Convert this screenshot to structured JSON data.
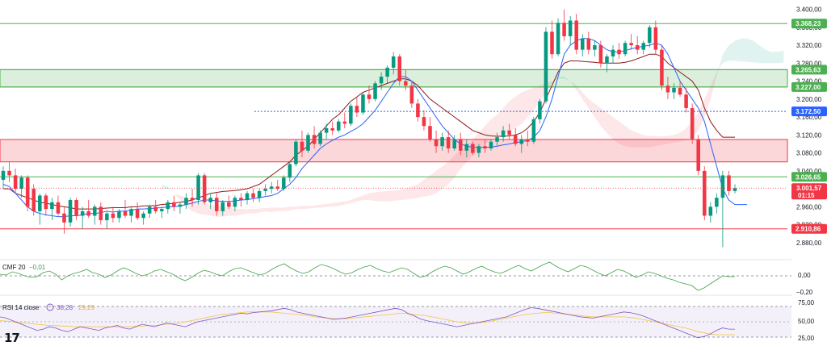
{
  "price_axis_ticks": [
    "3.400,00",
    "3.360,00",
    "3.320,00",
    "3.280,00",
    "3.240,00",
    "3.200,00",
    "3.160,00",
    "3.120,00",
    "3.080,00",
    "3.040,00",
    "2.960,00",
    "2.920,00",
    "2.880,00"
  ],
  "price_axis_tick_values": [
    3400,
    3360,
    3320,
    3280,
    3240,
    3200,
    3160,
    3120,
    3080,
    3040,
    2960,
    2920,
    2880
  ],
  "levels": [
    {
      "label": "3.368,23",
      "value": 3368.23,
      "color": "#4caf50",
      "style": "solid"
    },
    {
      "label": "3.265,63",
      "value": 3265.63,
      "color": "#4caf50",
      "style": "solid"
    },
    {
      "label": "3.227,00",
      "value": 3227.0,
      "color": "#4caf50",
      "style": "solid"
    },
    {
      "label": "3.172,50",
      "value": 3172.5,
      "color": "#2962ff",
      "style": "dotted"
    },
    {
      "label": "3.026,65",
      "value": 3026.65,
      "color": "#4caf50",
      "style": "solid"
    },
    {
      "label": "2.910,86",
      "value": 2910.86,
      "color": "#f23645",
      "style": "solid"
    }
  ],
  "zones": [
    {
      "name": "resistance-zone-green",
      "from": 3227.0,
      "to": 3265.63,
      "color": "#4caf50"
    },
    {
      "name": "support-zone-red",
      "from": 3060,
      "to": 3110,
      "color": "#f23645"
    }
  ],
  "current_price": {
    "label": "3.001,57",
    "countdown": "01:15",
    "value": 3001.57,
    "color": "#f23645"
  },
  "cmf": {
    "label": "CMF 20",
    "value": "−0,01",
    "ticks": [
      "0,00",
      "−0,20"
    ]
  },
  "rsi": {
    "label": "RSI 14 close",
    "value1": "38,28",
    "value2": "29,29",
    "ticks": [
      "75,00",
      "50,00",
      "25,00"
    ]
  },
  "logo_text": "17",
  "colors": {
    "up": "#089981",
    "down": "#f23645",
    "conversion": "#2962ff",
    "base": "#8b1a1a",
    "rsi": "#7e57c2",
    "rsi_ma": "#f6c343",
    "cmf": "#43a047"
  },
  "chart_data": {
    "type": "candlestick",
    "ylim": [
      2860,
      3410
    ],
    "candles": [
      [
        3020,
        3050,
        3000,
        3040
      ],
      [
        3040,
        3060,
        3015,
        3030
      ],
      [
        3030,
        3045,
        2990,
        3000
      ],
      [
        3000,
        3030,
        2980,
        3025
      ],
      [
        3025,
        3030,
        2950,
        2960
      ],
      [
        3000,
        3010,
        2940,
        2950
      ],
      [
        2950,
        2990,
        2920,
        2985
      ],
      [
        2985,
        2990,
        2940,
        2955
      ],
      [
        2955,
        2980,
        2930,
        2970
      ],
      [
        2970,
        2985,
        2940,
        2945
      ],
      [
        2945,
        2960,
        2900,
        2925
      ],
      [
        2925,
        2980,
        2915,
        2975
      ],
      [
        2975,
        2980,
        2930,
        2940
      ],
      [
        2940,
        2960,
        2910,
        2950
      ],
      [
        2950,
        2975,
        2935,
        2940
      ],
      [
        2940,
        2965,
        2920,
        2960
      ],
      [
        2960,
        2970,
        2920,
        2930
      ],
      [
        2930,
        2950,
        2910,
        2945
      ],
      [
        2945,
        2960,
        2925,
        2935
      ],
      [
        2935,
        2955,
        2925,
        2950
      ],
      [
        2950,
        2975,
        2935,
        2940
      ],
      [
        2940,
        2960,
        2925,
        2955
      ],
      [
        2955,
        2970,
        2930,
        2935
      ],
      [
        2935,
        2950,
        2920,
        2945
      ],
      [
        2945,
        2965,
        2935,
        2960
      ],
      [
        2960,
        2975,
        2945,
        2950
      ],
      [
        2950,
        2960,
        2935,
        2955
      ],
      [
        2955,
        2975,
        2945,
        2970
      ],
      [
        2970,
        2985,
        2950,
        2960
      ],
      [
        2960,
        2970,
        2945,
        2965
      ],
      [
        2965,
        2990,
        2955,
        2980
      ],
      [
        2980,
        3000,
        2960,
        2975
      ],
      [
        2975,
        3035,
        2965,
        3030
      ],
      [
        3030,
        3035,
        2965,
        2970
      ],
      [
        2970,
        2990,
        2955,
        2980
      ],
      [
        2980,
        2990,
        2940,
        2950
      ],
      [
        2950,
        2975,
        2940,
        2970
      ],
      [
        2970,
        2985,
        2955,
        2960
      ],
      [
        2960,
        2985,
        2950,
        2980
      ],
      [
        2980,
        2990,
        2960,
        2975
      ],
      [
        2975,
        2995,
        2965,
        2990
      ],
      [
        2990,
        3000,
        2970,
        2980
      ],
      [
        2980,
        3000,
        2970,
        2995
      ],
      [
        2995,
        3010,
        2985,
        3000
      ],
      [
        3000,
        3015,
        2990,
        3005
      ],
      [
        3005,
        3020,
        2995,
        3000
      ],
      [
        3000,
        3030,
        2995,
        3025
      ],
      [
        3025,
        3060,
        3015,
        3055
      ],
      [
        3055,
        3110,
        3050,
        3105
      ],
      [
        3105,
        3130,
        3070,
        3085
      ],
      [
        3085,
        3125,
        3080,
        3120
      ],
      [
        3120,
        3140,
        3090,
        3100
      ],
      [
        3100,
        3130,
        3095,
        3125
      ],
      [
        3125,
        3145,
        3110,
        3135
      ],
      [
        3135,
        3150,
        3120,
        3130
      ],
      [
        3130,
        3155,
        3125,
        3150
      ],
      [
        3150,
        3170,
        3135,
        3145
      ],
      [
        3145,
        3190,
        3140,
        3185
      ],
      [
        3185,
        3205,
        3160,
        3170
      ],
      [
        3170,
        3215,
        3165,
        3210
      ],
      [
        3210,
        3230,
        3190,
        3200
      ],
      [
        3200,
        3240,
        3195,
        3235
      ],
      [
        3235,
        3260,
        3220,
        3250
      ],
      [
        3250,
        3275,
        3235,
        3270
      ],
      [
        3270,
        3305,
        3255,
        3295
      ],
      [
        3295,
        3300,
        3230,
        3240
      ],
      [
        3240,
        3265,
        3220,
        3230
      ],
      [
        3230,
        3240,
        3180,
        3190
      ],
      [
        3190,
        3200,
        3150,
        3160
      ],
      [
        3160,
        3175,
        3130,
        3140
      ],
      [
        3140,
        3160,
        3105,
        3110
      ],
      [
        3110,
        3130,
        3080,
        3095
      ],
      [
        3095,
        3125,
        3085,
        3115
      ],
      [
        3115,
        3130,
        3080,
        3090
      ],
      [
        3090,
        3120,
        3085,
        3110
      ],
      [
        3110,
        3125,
        3075,
        3085
      ],
      [
        3085,
        3110,
        3070,
        3100
      ],
      [
        3100,
        3105,
        3075,
        3080
      ],
      [
        3080,
        3100,
        3070,
        3095
      ],
      [
        3095,
        3110,
        3080,
        3090
      ],
      [
        3090,
        3110,
        3085,
        3105
      ],
      [
        3105,
        3125,
        3095,
        3115
      ],
      [
        3115,
        3140,
        3105,
        3130
      ],
      [
        3130,
        3145,
        3110,
        3120
      ],
      [
        3120,
        3135,
        3095,
        3100
      ],
      [
        3100,
        3120,
        3080,
        3110
      ],
      [
        3110,
        3130,
        3095,
        3105
      ],
      [
        3105,
        3160,
        3100,
        3155
      ],
      [
        3155,
        3200,
        3145,
        3195
      ],
      [
        3195,
        3360,
        3190,
        3350
      ],
      [
        3350,
        3375,
        3290,
        3300
      ],
      [
        3300,
        3380,
        3295,
        3370
      ],
      [
        3370,
        3400,
        3330,
        3340
      ],
      [
        3340,
        3385,
        3320,
        3375
      ],
      [
        3375,
        3390,
        3300,
        3310
      ],
      [
        3310,
        3345,
        3295,
        3335
      ],
      [
        3335,
        3350,
        3300,
        3310
      ],
      [
        3310,
        3330,
        3295,
        3320
      ],
      [
        3320,
        3330,
        3270,
        3280
      ],
      [
        3280,
        3300,
        3260,
        3295
      ],
      [
        3295,
        3320,
        3280,
        3310
      ],
      [
        3310,
        3325,
        3290,
        3300
      ],
      [
        3300,
        3330,
        3295,
        3325
      ],
      [
        3325,
        3345,
        3310,
        3320
      ],
      [
        3320,
        3340,
        3300,
        3310
      ],
      [
        3310,
        3330,
        3300,
        3325
      ],
      [
        3325,
        3365,
        3315,
        3360
      ],
      [
        3360,
        3375,
        3300,
        3310
      ],
      [
        3310,
        3320,
        3220,
        3230
      ],
      [
        3230,
        3250,
        3200,
        3215
      ],
      [
        3215,
        3235,
        3200,
        3225
      ],
      [
        3225,
        3240,
        3205,
        3210
      ],
      [
        3210,
        3225,
        3170,
        3180
      ],
      [
        3180,
        3190,
        3100,
        3110
      ],
      [
        3110,
        3120,
        3030,
        3040
      ],
      [
        3040,
        3050,
        2930,
        2940
      ],
      [
        2940,
        2970,
        2925,
        2960
      ],
      [
        2960,
        2990,
        2945,
        2980
      ],
      [
        2980,
        3040,
        2870,
        3030
      ],
      [
        3030,
        3040,
        2985,
        2995
      ],
      [
        2995,
        3010,
        2990,
        3001.57
      ]
    ],
    "conversion_line": [
      3010,
      3005,
      2990,
      2975,
      2960,
      2950,
      2945,
      2942,
      2940,
      2938,
      2938,
      2940,
      2940,
      2942,
      2945,
      2945,
      2947,
      2950,
      2948,
      2950,
      2950,
      2952,
      2955,
      2955,
      2956,
      2957,
      2958,
      2960,
      2960,
      2962,
      2965,
      2968,
      2972,
      2975,
      2975,
      2973,
      2972,
      2972,
      2973,
      2975,
      2976,
      2978,
      2980,
      2983,
      2985,
      2990,
      3000,
      3010,
      3025,
      3045,
      3060,
      3075,
      3090,
      3100,
      3108,
      3115,
      3120,
      3128,
      3135,
      3145,
      3160,
      3175,
      3195,
      3215,
      3235,
      3250,
      3250,
      3240,
      3220,
      3200,
      3180,
      3160,
      3140,
      3125,
      3110,
      3100,
      3095,
      3093,
      3092,
      3092,
      3093,
      3095,
      3098,
      3100,
      3103,
      3105,
      3108,
      3115,
      3130,
      3160,
      3200,
      3250,
      3300,
      3320,
      3330,
      3335,
      3335,
      3330,
      3320,
      3310,
      3305,
      3305,
      3308,
      3312,
      3315,
      3318,
      3320,
      3325,
      3320,
      3300,
      3270,
      3240,
      3220,
      3200,
      3180,
      3150,
      3100,
      3050,
      3000,
      2975,
      2965,
      2965,
      2965
    ],
    "base_line": [
      3000,
      3000,
      2990,
      2985,
      2980,
      2975,
      2970,
      2968,
      2965,
      2962,
      2960,
      2958,
      2955,
      2955,
      2955,
      2955,
      2956,
      2957,
      2958,
      2958,
      2958,
      2960,
      2960,
      2962,
      2962,
      2963,
      2965,
      2966,
      2968,
      2970,
      2972,
      2975,
      2980,
      2985,
      2990,
      2992,
      2994,
      2995,
      2996,
      2998,
      3000,
      3005,
      3010,
      3020,
      3030,
      3040,
      3050,
      3060,
      3075,
      3085,
      3095,
      3110,
      3125,
      3140,
      3155,
      3165,
      3180,
      3195,
      3205,
      3215,
      3220,
      3225,
      3230,
      3235,
      3240,
      3245,
      3245,
      3240,
      3230,
      3215,
      3200,
      3190,
      3180,
      3170,
      3160,
      3150,
      3140,
      3130,
      3125,
      3120,
      3118,
      3117,
      3117,
      3118,
      3120,
      3125,
      3135,
      3150,
      3170,
      3200,
      3230,
      3260,
      3280,
      3285,
      3285,
      3284,
      3283,
      3282,
      3280,
      3280,
      3280,
      3280,
      3282,
      3285,
      3290,
      3295,
      3300,
      3300,
      3295,
      3280,
      3270,
      3260,
      3250,
      3240,
      3220,
      3180,
      3150,
      3130,
      3115,
      3115,
      3115
    ]
  },
  "cmf_series": [
    0.02,
    0.01,
    0.05,
    0.03,
    0.0,
    -0.02,
    -0.01,
    0.04,
    0.06,
    0.02,
    -0.05,
    0.0,
    0.03,
    0.05,
    0.08,
    0.04,
    0.02,
    -0.02,
    0.01,
    0.06,
    0.1,
    0.07,
    0.03,
    0.0,
    0.02,
    0.06,
    0.08,
    0.05,
    0.02,
    -0.03,
    -0.06,
    -0.02,
    0.03,
    0.07,
    0.05,
    0.02,
    0.0,
    0.05,
    0.09,
    0.1,
    0.07,
    0.04,
    0.01,
    0.03,
    0.08,
    0.12,
    0.15,
    0.1,
    0.06,
    0.03,
    0.05,
    0.1,
    0.14,
    0.12,
    0.09,
    0.05,
    0.02,
    0.04,
    0.08,
    0.11,
    0.13,
    0.09,
    0.06,
    0.04,
    0.07,
    0.1,
    0.08,
    0.03,
    -0.02,
    0.0,
    0.05,
    0.09,
    0.12,
    0.1,
    0.06,
    0.02,
    0.05,
    0.09,
    0.12,
    0.08,
    0.05,
    0.03,
    0.06,
    0.1,
    0.13,
    0.09,
    0.06,
    0.1,
    0.14,
    0.17,
    0.12,
    0.08,
    0.05,
    0.09,
    0.13,
    0.11,
    0.07,
    0.03,
    0.0,
    0.04,
    0.08,
    0.06,
    0.02,
    -0.02,
    0.01,
    0.05,
    0.03,
    0.0,
    -0.03,
    -0.05,
    -0.08,
    -0.1,
    -0.12,
    -0.18,
    -0.15,
    -0.1,
    -0.05,
    0.0,
    -0.01,
    -0.01
  ],
  "rsi_series": [
    58,
    56,
    52,
    48,
    44,
    40,
    36,
    38,
    42,
    40,
    36,
    34,
    38,
    42,
    40,
    38,
    36,
    40,
    42,
    44,
    40,
    38,
    42,
    46,
    44,
    42,
    45,
    48,
    46,
    44,
    42,
    46,
    50,
    52,
    54,
    56,
    58,
    60,
    62,
    64,
    63,
    65,
    66,
    67,
    68,
    70,
    72,
    70,
    66,
    64,
    62,
    60,
    58,
    56,
    54,
    55,
    56,
    58,
    60,
    62,
    64,
    66,
    68,
    70,
    72,
    70,
    64,
    60,
    55,
    52,
    50,
    48,
    46,
    44,
    42,
    44,
    46,
    48,
    50,
    52,
    54,
    56,
    58,
    62,
    66,
    70,
    73,
    72,
    70,
    68,
    66,
    64,
    62,
    60,
    58,
    57,
    56,
    58,
    60,
    62,
    64,
    66,
    65,
    63,
    60,
    56,
    52,
    48,
    44,
    40,
    36,
    32,
    28,
    24,
    26,
    30,
    36,
    40,
    38,
    38
  ],
  "rsi_ma_series": [
    52,
    51,
    50,
    49,
    48,
    47,
    46,
    45,
    44,
    44,
    43,
    43,
    42,
    42,
    42,
    42,
    42,
    42,
    42,
    42,
    42,
    42,
    43,
    43,
    44,
    44,
    45,
    46,
    47,
    48,
    50,
    52,
    54,
    56,
    58,
    60,
    62,
    63,
    64,
    65,
    66,
    66,
    66,
    66,
    66,
    65,
    64,
    63,
    62,
    61,
    60,
    58,
    57,
    56,
    55,
    55,
    55,
    56,
    57,
    58,
    59,
    60,
    61,
    62,
    63,
    64,
    63,
    62,
    61,
    60,
    58,
    56,
    54,
    52,
    50,
    49,
    48,
    48,
    49,
    50,
    52,
    54,
    56,
    58,
    60,
    62,
    63,
    64,
    65,
    65,
    64,
    63,
    62,
    61,
    60,
    59,
    58,
    58,
    58,
    58,
    58,
    58,
    57,
    56,
    54,
    52,
    50,
    48,
    46,
    44,
    42,
    40,
    37,
    34,
    32,
    30,
    29,
    29,
    29,
    29
  ]
}
